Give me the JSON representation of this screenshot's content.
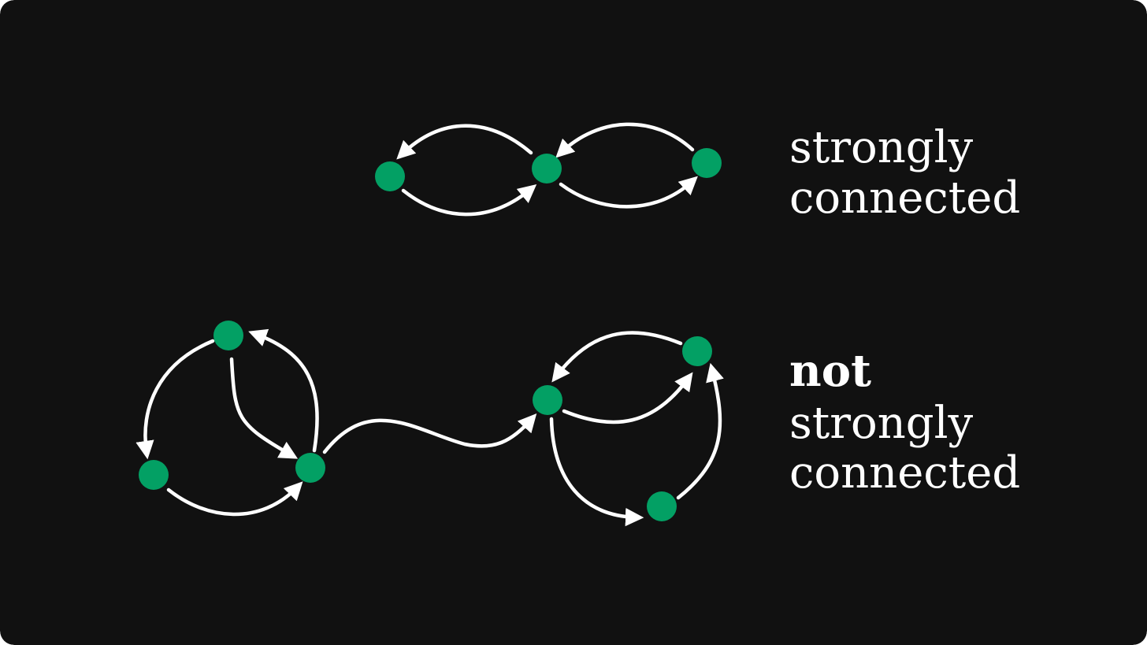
{
  "colors": {
    "background": "#111111",
    "node": "#03a064",
    "edge": "#ffffff",
    "text": "#ffffff"
  },
  "top_example": {
    "label_line1": "strongly",
    "label_line2": "connected"
  },
  "bottom_example": {
    "label_line1": "not",
    "label_line2": "strongly",
    "label_line3": "connected"
  }
}
